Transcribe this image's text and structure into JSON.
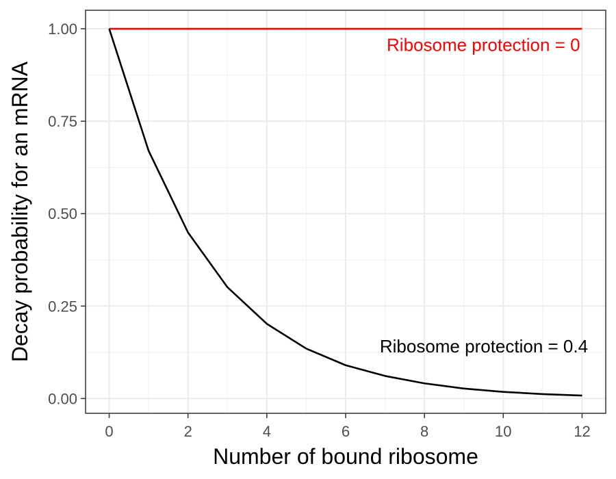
{
  "chart_data": {
    "type": "line",
    "xlabel": "Number of bound ribosome",
    "ylabel": "Decay probability for an mRNA",
    "xlim": [
      -0.6,
      12.6
    ],
    "ylim": [
      -0.04,
      1.05
    ],
    "x_ticks": [
      0,
      2,
      4,
      6,
      8,
      10,
      12
    ],
    "x_tick_labels": [
      "0",
      "2",
      "4",
      "6",
      "8",
      "10",
      "12"
    ],
    "y_ticks": [
      0,
      0.25,
      0.5,
      0.75,
      1.0
    ],
    "y_tick_labels": [
      "0.00",
      "0.25",
      "0.50",
      "0.75",
      "1.00"
    ],
    "grid": true,
    "series": [
      {
        "color": "#ff0000",
        "x": [
          0,
          1,
          2,
          3,
          4,
          5,
          6,
          7,
          8,
          9,
          10,
          11,
          12
        ],
        "values": [
          1,
          1,
          1,
          1,
          1,
          1,
          1,
          1,
          1,
          1,
          1,
          1,
          1
        ]
      },
      {
        "color": "#000000",
        "x": [
          0,
          1,
          2,
          3,
          4,
          5,
          6,
          7,
          8,
          9,
          10,
          11,
          12
        ],
        "values": [
          1.0,
          0.67,
          0.449,
          0.301,
          0.202,
          0.135,
          0.09,
          0.061,
          0.041,
          0.027,
          0.018,
          0.012,
          0.008
        ]
      }
    ],
    "annotations": [
      {
        "text": "Ribosome protection = 0",
        "x": 11.95,
        "y": 0.94,
        "anchor": "end",
        "color": "#ff0000"
      },
      {
        "text": "Ribosome protection = 0.4",
        "x": 12.15,
        "y": 0.125,
        "anchor": "end",
        "color": "#000000"
      }
    ]
  }
}
